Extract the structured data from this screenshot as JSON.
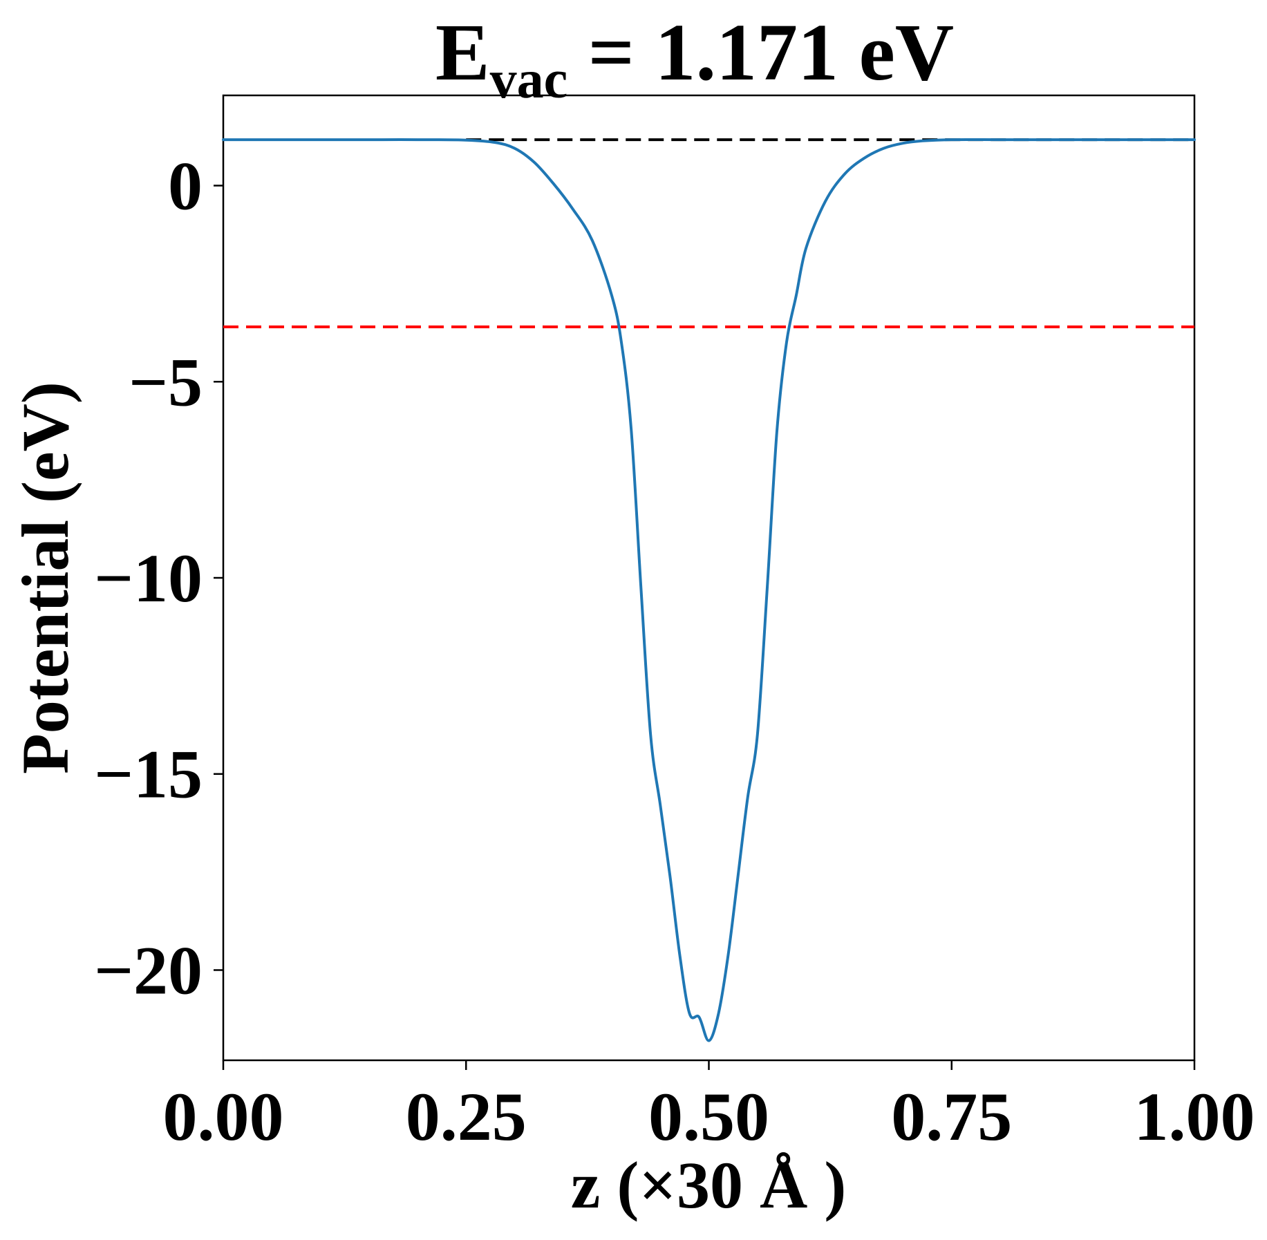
{
  "chart_data": {
    "type": "line",
    "title": {
      "main": "E",
      "subscript": "vac",
      "rest": " = 1.171 eV"
    },
    "xlabel": "z (×30 Å )",
    "ylabel": "Potential (eV)",
    "xlim": [
      0.0,
      1.0
    ],
    "ylim": [
      -22.3,
      2.3
    ],
    "x_ticks": [
      0.0,
      0.25,
      0.5,
      0.75,
      1.0
    ],
    "x_tick_labels": [
      "0.00",
      "0.25",
      "0.50",
      "0.75",
      "1.00"
    ],
    "y_ticks": [
      0,
      -5,
      -10,
      -15,
      -20
    ],
    "y_tick_labels": [
      "0",
      "−5",
      "−10",
      "−15",
      "−20"
    ],
    "grid": false,
    "legend": "none",
    "series": [
      {
        "color": "#1f77b4",
        "x": [
          0.0,
          0.05,
          0.1,
          0.15,
          0.2,
          0.25,
          0.28,
          0.3,
          0.32,
          0.34,
          0.36,
          0.38,
          0.4,
          0.41,
          0.42,
          0.43,
          0.44,
          0.45,
          0.46,
          0.47,
          0.48,
          0.49,
          0.5,
          0.51,
          0.52,
          0.53,
          0.54,
          0.55,
          0.56,
          0.57,
          0.58,
          0.59,
          0.6,
          0.62,
          0.64,
          0.66,
          0.68,
          0.7,
          0.72,
          0.75,
          0.8,
          0.85,
          0.9,
          0.95,
          1.0
        ],
        "y": [
          1.17,
          1.17,
          1.17,
          1.17,
          1.17,
          1.16,
          1.1,
          0.95,
          0.6,
          0.05,
          -0.6,
          -1.4,
          -2.8,
          -4.0,
          -6.2,
          -10.2,
          -14.0,
          -15.8,
          -17.6,
          -19.6,
          -21.1,
          -21.2,
          -21.8,
          -21.1,
          -19.6,
          -17.6,
          -15.6,
          -14.0,
          -10.3,
          -6.3,
          -4.0,
          -2.8,
          -1.6,
          -0.4,
          0.3,
          0.7,
          0.95,
          1.08,
          1.14,
          1.17,
          1.17,
          1.17,
          1.17,
          1.17,
          1.17
        ]
      }
    ],
    "reference_lines": [
      {
        "y": 1.171,
        "color": "#000000",
        "style": "dashed",
        "x_start": 0.25,
        "x_end": 1.0
      },
      {
        "y": -3.6,
        "color": "#ff0000",
        "style": "dashed",
        "x_start": 0.0,
        "x_end": 1.0
      }
    ]
  }
}
